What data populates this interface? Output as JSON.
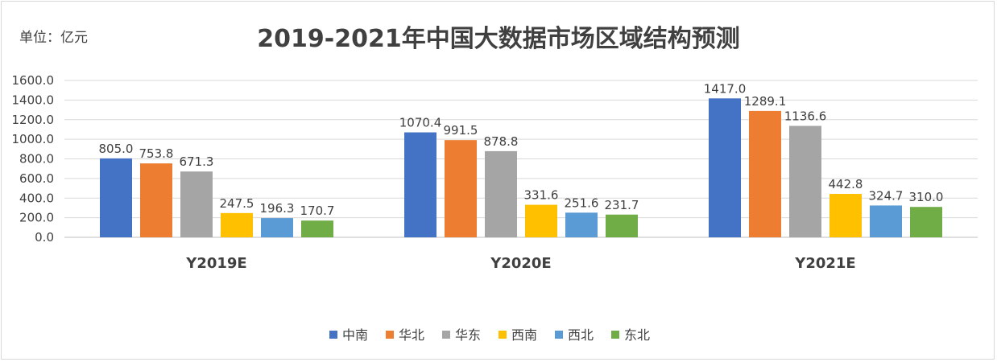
{
  "chart_data": {
    "type": "bar",
    "title": "2019-2021年中国大数据市场区域结构预测",
    "unit_label": "单位：亿元",
    "categories": [
      "Y2019E",
      "Y2020E",
      "Y2021E"
    ],
    "series": [
      {
        "name": "中南",
        "color": "#4472c4",
        "values": [
          805.0,
          1070.4,
          1417.0
        ]
      },
      {
        "name": "华北",
        "color": "#ed7d31",
        "values": [
          753.8,
          991.5,
          1289.1
        ]
      },
      {
        "name": "华东",
        "color": "#a5a5a5",
        "values": [
          671.3,
          878.8,
          1136.6
        ]
      },
      {
        "name": "西南",
        "color": "#ffc000",
        "values": [
          247.5,
          331.6,
          442.8
        ]
      },
      {
        "name": "西北",
        "color": "#5b9bd5",
        "values": [
          196.3,
          251.6,
          324.7
        ]
      },
      {
        "name": "东北",
        "color": "#70ad47",
        "values": [
          170.7,
          231.7,
          310.0
        ]
      }
    ],
    "ylim": [
      0,
      1600
    ],
    "yticks": [
      "0.0",
      "200.0",
      "400.0",
      "600.0",
      "800.0",
      "1000.0",
      "1200.0",
      "1400.0",
      "1600.0"
    ],
    "grid": true,
    "legend_position": "bottom"
  }
}
